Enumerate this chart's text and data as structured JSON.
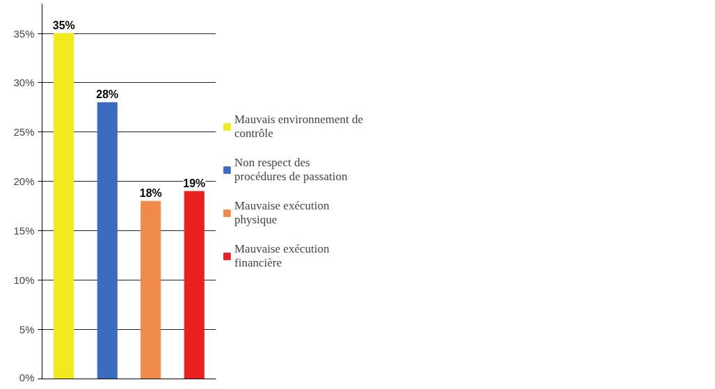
{
  "chart_data": {
    "type": "bar",
    "categories": [
      null,
      null,
      null,
      null
    ],
    "series": [
      {
        "name": "Mauvais environnement de contrôle",
        "color": "#f0ea1e",
        "values": [
          35,
          null,
          null,
          null
        ],
        "value_labels": [
          "35%",
          null,
          null,
          null
        ]
      },
      {
        "name": "Non respect des procédures de passation",
        "color": "#3a6cc0",
        "values": [
          null,
          28,
          null,
          null
        ],
        "value_labels": [
          null,
          "28%",
          null,
          null
        ]
      },
      {
        "name": "Mauvaise exécution physique",
        "color": "#f08a4a",
        "values": [
          null,
          null,
          18,
          null
        ],
        "value_labels": [
          null,
          null,
          "18%",
          null
        ]
      },
      {
        "name": "Mauvaise exécution financière",
        "color": "#e82020",
        "values": [
          null,
          null,
          null,
          19
        ],
        "value_labels": [
          null,
          null,
          null,
          "19%"
        ]
      }
    ],
    "ylim": [
      0,
      38
    ],
    "yticks": [
      {
        "value": 0,
        "label": "0%"
      },
      {
        "value": 5,
        "label": "5%"
      },
      {
        "value": 10,
        "label": "10%"
      },
      {
        "value": 15,
        "label": "15%"
      },
      {
        "value": 20,
        "label": "20%"
      },
      {
        "value": 25,
        "label": "25%"
      },
      {
        "value": 30,
        "label": "30%"
      },
      {
        "value": 35,
        "label": "35%"
      }
    ],
    "grid": "y",
    "legend": "right"
  }
}
